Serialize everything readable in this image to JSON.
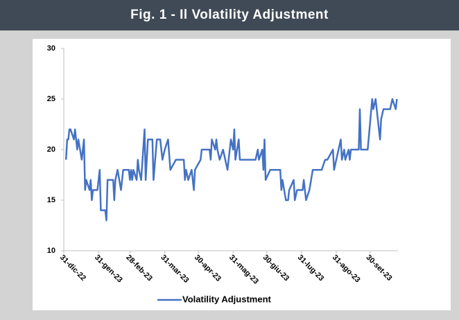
{
  "chart_data": {
    "type": "line",
    "title": "Fig. 1 - Il Volatility Adjustment",
    "x": [
      "2023-01-02",
      "2023-01-03",
      "2023-01-04",
      "2023-01-05",
      "2023-01-06",
      "2023-01-09",
      "2023-01-10",
      "2023-01-11",
      "2023-01-12",
      "2023-01-13",
      "2023-01-16",
      "2023-01-17",
      "2023-01-18",
      "2023-01-19",
      "2023-01-20",
      "2023-01-23",
      "2023-01-24",
      "2023-01-25",
      "2023-01-26",
      "2023-01-30",
      "2023-02-01",
      "2023-02-02",
      "2023-02-06",
      "2023-02-07",
      "2023-02-08",
      "2023-02-13",
      "2023-02-14",
      "2023-02-15",
      "2023-02-17",
      "2023-02-20",
      "2023-02-22",
      "2023-02-27",
      "2023-02-28",
      "2023-03-01",
      "2023-03-02",
      "2023-03-03",
      "2023-03-06",
      "2023-03-07",
      "2023-03-08",
      "2023-03-10",
      "2023-03-13",
      "2023-03-14",
      "2023-03-16",
      "2023-03-20",
      "2023-03-21",
      "2023-03-24",
      "2023-03-27",
      "2023-03-29",
      "2023-03-31",
      "2023-04-03",
      "2023-04-05",
      "2023-04-10",
      "2023-04-17",
      "2023-04-18",
      "2023-04-19",
      "2023-04-21",
      "2023-04-24",
      "2023-04-26",
      "2023-04-27",
      "2023-05-02",
      "2023-05-03",
      "2023-05-10",
      "2023-05-11",
      "2023-05-12",
      "2023-05-15",
      "2023-05-16",
      "2023-05-17",
      "2023-05-19",
      "2023-05-22",
      "2023-05-26",
      "2023-05-29",
      "2023-05-31",
      "2023-06-01",
      "2023-06-02",
      "2023-06-05",
      "2023-06-06",
      "2023-06-09",
      "2023-06-20",
      "2023-06-22",
      "2023-06-23",
      "2023-06-26",
      "2023-06-27",
      "2023-06-28",
      "2023-06-29",
      "2023-07-03",
      "2023-07-12",
      "2023-07-13",
      "2023-07-14",
      "2023-07-17",
      "2023-07-19",
      "2023-07-20",
      "2023-07-24",
      "2023-07-25",
      "2023-07-27",
      "2023-08-01",
      "2023-08-02",
      "2023-08-04",
      "2023-08-07",
      "2023-08-10",
      "2023-08-18",
      "2023-08-21",
      "2023-08-23",
      "2023-08-28",
      "2023-08-29",
      "2023-08-31",
      "2023-09-04",
      "2023-09-05",
      "2023-09-07",
      "2023-09-08",
      "2023-09-11",
      "2023-09-12",
      "2023-09-13",
      "2023-09-20",
      "2023-09-21",
      "2023-09-22",
      "2023-09-28",
      "2023-10-02",
      "2023-10-03",
      "2023-10-05",
      "2023-10-09",
      "2023-10-10",
      "2023-10-12",
      "2023-10-18",
      "2023-10-20",
      "2023-10-23",
      "2023-10-24"
    ],
    "series": [
      {
        "name": "Volatility Adjustment",
        "color": "#4472c4",
        "values": [
          19,
          21,
          21,
          22,
          22,
          21,
          22,
          21,
          20,
          21,
          19,
          20,
          21,
          16,
          17,
          16,
          17,
          15,
          16,
          16,
          18,
          14,
          14,
          13,
          17,
          17,
          15,
          17,
          18,
          16,
          18,
          18,
          17,
          18,
          17,
          18,
          17,
          19,
          18,
          17,
          22,
          17,
          21,
          21,
          17,
          21,
          21,
          19,
          20,
          21,
          18,
          19,
          19,
          17,
          18,
          17,
          18,
          16,
          18,
          19,
          20,
          20,
          19,
          21,
          20,
          21,
          20,
          19,
          20,
          18,
          21,
          20,
          22,
          19,
          21,
          19,
          19,
          19,
          20,
          19,
          20,
          18,
          21,
          17,
          18,
          18,
          16,
          17,
          15,
          15,
          16,
          17,
          15,
          16,
          16,
          17,
          15,
          16,
          18,
          18,
          19,
          19,
          20,
          18,
          19,
          21,
          19,
          20,
          19,
          20,
          19,
          20,
          20,
          24,
          20,
          20,
          25,
          24,
          25,
          21,
          23,
          24,
          24,
          25,
          24,
          25
        ]
      }
    ],
    "xlim": [
      "2022-12-31",
      "2023-10-25"
    ],
    "xticks": [
      {
        "value": "2022-12-31",
        "label": "31-dic-22"
      },
      {
        "value": "2023-01-31",
        "label": "31-gen-23"
      },
      {
        "value": "2023-02-28",
        "label": "28-feb-23"
      },
      {
        "value": "2023-03-31",
        "label": "31-mar-23"
      },
      {
        "value": "2023-04-30",
        "label": "30-apr-23"
      },
      {
        "value": "2023-05-31",
        "label": "31-mag-23"
      },
      {
        "value": "2023-06-30",
        "label": "30-giu-23"
      },
      {
        "value": "2023-07-31",
        "label": "31-lug-23"
      },
      {
        "value": "2023-08-31",
        "label": "31-ago-23"
      },
      {
        "value": "2023-09-30",
        "label": "30-set-23"
      }
    ],
    "ylim": [
      10,
      30
    ],
    "yticks": [
      10,
      15,
      20,
      25,
      30
    ],
    "grid": false,
    "legend": "bottom"
  }
}
